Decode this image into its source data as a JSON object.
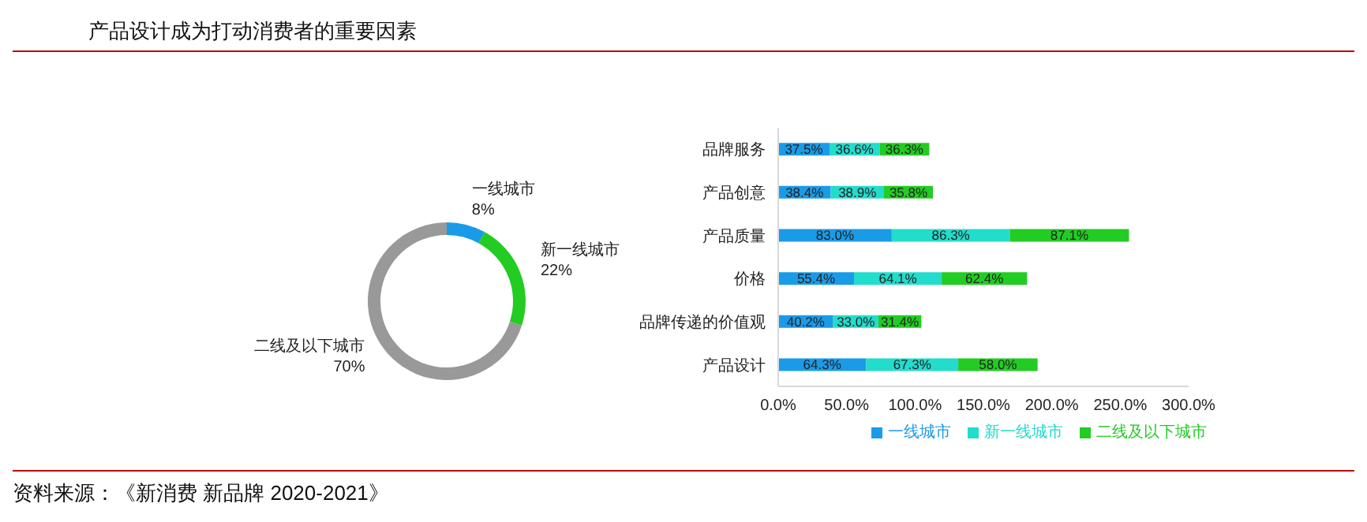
{
  "chart_data": [
    {
      "type": "donut",
      "title": "产品设计成为打动消费者的重要因素",
      "categories": [
        "一线城市",
        "新一线城市",
        "二线及以下城市"
      ],
      "values": [
        8,
        22,
        70
      ],
      "colors": [
        "#1a9be8",
        "#22cc22",
        "#999999"
      ],
      "value_labels": [
        "8%",
        "22%",
        "70%"
      ],
      "legend": false
    },
    {
      "type": "bar",
      "orientation": "horizontal",
      "stacked": true,
      "categories": [
        "品牌服务",
        "产品创意",
        "产品质量",
        "价格",
        "品牌传递的价值观",
        "产品设计"
      ],
      "series": [
        {
          "name": "一线城市",
          "color": "#1a9be8",
          "values": [
            37.5,
            38.4,
            83.0,
            55.4,
            40.2,
            64.3
          ],
          "value_labels": [
            "37.5%",
            "38.4%",
            "83.0%",
            "55.4%",
            "40.2%",
            "64.3%"
          ]
        },
        {
          "name": "新一线城市",
          "color": "#22dccc",
          "values": [
            36.6,
            38.9,
            86.3,
            64.1,
            33.0,
            67.3
          ],
          "value_labels": [
            "36.6%",
            "38.9%",
            "86.3%",
            "64.1%",
            "33.0%",
            "67.3%"
          ]
        },
        {
          "name": "二线及以下城市",
          "color": "#22cc22",
          "values": [
            36.3,
            35.8,
            87.1,
            62.4,
            31.4,
            58.0
          ],
          "value_labels": [
            "36.3%",
            "35.8%",
            "87.1%",
            "62.4%",
            "31.4%",
            "58.0%"
          ]
        }
      ],
      "xlim": [
        0,
        300
      ],
      "xticks": [
        {
          "value": 0,
          "label": "0.0%"
        },
        {
          "value": 50,
          "label": "50.0%"
        },
        {
          "value": 100,
          "label": "100.0%"
        },
        {
          "value": 150,
          "label": "150.0%"
        },
        {
          "value": 200,
          "label": "200.0%"
        },
        {
          "value": 250,
          "label": "250.0%"
        },
        {
          "value": 300,
          "label": "300.0%"
        }
      ],
      "legend": "bottom",
      "grid": false,
      "annotations": [
        "资料来源：《新消费 新品牌 2020-2021》"
      ]
    }
  ]
}
